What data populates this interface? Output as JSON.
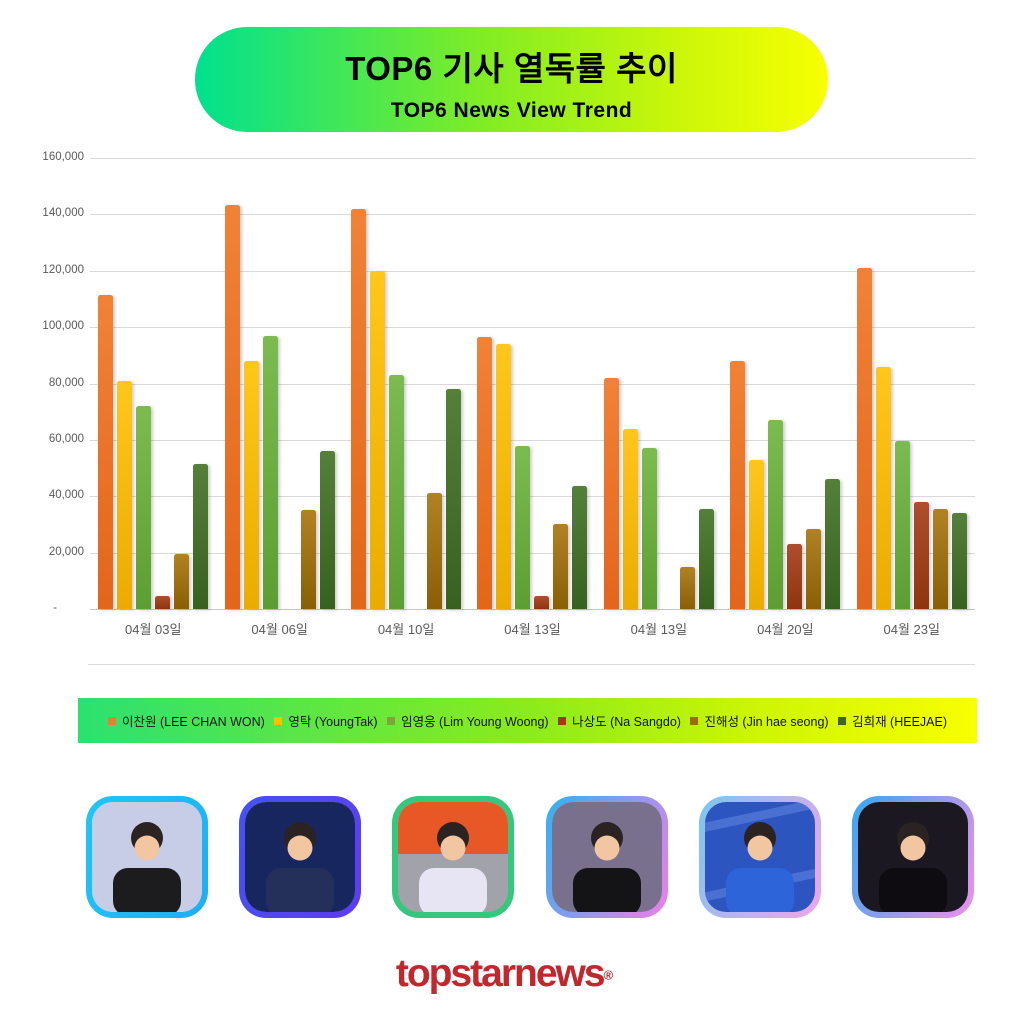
{
  "banner": {
    "title": "TOP6 기사 열독률 추이",
    "subtitle": "TOP6 News View Trend",
    "gradient": [
      "#00E18F",
      "#F8FF00"
    ]
  },
  "chart_data": {
    "type": "bar",
    "title": "TOP6 기사 열독률 추이",
    "subtitle": "TOP6 News View Trend",
    "categories": [
      "04월 03일",
      "04월 06일",
      "04월 10일",
      "04월 13일",
      "04월 13일",
      "04월 20일",
      "04월 23일"
    ],
    "series": [
      {
        "name": "이찬원 (LEE CHAN WON)",
        "marker": "#ED7D31",
        "color_top": "#F08236",
        "color_bottom": "#E2661B",
        "values": [
          111500,
          143500,
          142000,
          96500,
          82000,
          88000,
          121000
        ]
      },
      {
        "name": "영탁 (YoungTak)",
        "marker": "#FFC000",
        "color_top": "#FFC61C",
        "color_bottom": "#EAAC00",
        "values": [
          81000,
          88000,
          120000,
          94000,
          64000,
          53000,
          86000
        ]
      },
      {
        "name": "임영웅 (Lim Young Woong)",
        "marker": "#7CA63C",
        "color_top": "#7CBB50",
        "color_bottom": "#5C9E33",
        "values": [
          72000,
          97000,
          83000,
          58000,
          57000,
          67000,
          59500
        ]
      },
      {
        "name": "나상도 (Na Sangdo)",
        "marker": "#9E3C16",
        "color_top": "#AE4E2D",
        "color_bottom": "#8E350F",
        "values": [
          4500,
          0,
          0,
          4500,
          0,
          23000,
          38000
        ]
      },
      {
        "name": "진해성 (Jin hae seong)",
        "marker": "#9A6D0B",
        "color_top": "#B08224",
        "color_bottom": "#8A5F05",
        "values": [
          19500,
          35000,
          41000,
          30000,
          15000,
          28500,
          35500
        ]
      },
      {
        "name": "김희재 (HEEJAE)",
        "marker": "#3F6426",
        "color_top": "#55803A",
        "color_bottom": "#37611E",
        "values": [
          51500,
          56000,
          78000,
          43500,
          35500,
          46000,
          34000
        ]
      }
    ],
    "ylim": [
      0,
      160000
    ],
    "ytick_step": 20000,
    "ytick_labels": [
      "160,000",
      "140,000",
      "120,000",
      "100,000",
      "80,000",
      "60,000",
      "40,000",
      "20,000",
      "-"
    ],
    "grid": true,
    "legend_position": "bottom",
    "legend_gradient": [
      "#2BE171",
      "#F8FF00"
    ]
  },
  "avatar_style": {
    "skin": "#F1C6A0",
    "hair": "#2A2321"
  },
  "avatars": [
    {
      "border": [
        "#1FC6F8",
        "#1FAEF2"
      ],
      "bg": "#C7CDE7",
      "outfit": "#1C1C1E"
    },
    {
      "border": [
        "#4353F2",
        "#5F3BF2"
      ],
      "bg": "#17265F",
      "outfit": "#25305A"
    },
    {
      "border": [
        "#35C77E",
        "#35C77E"
      ],
      "bg": "#E85827",
      "bg2": "#A2A2AA",
      "outfit": "#E7E5F3"
    },
    {
      "border": [
        "#2FB3F2",
        "#F07EE9"
      ],
      "bg": "#79708E",
      "outfit": "#141416"
    },
    {
      "border": [
        "#79C7F3",
        "#F2A4E4"
      ],
      "bg": "#2C55BF",
      "stripes": "#4A70D4",
      "outfit": "#2E64D9"
    },
    {
      "border": [
        "#36A7F0",
        "#EE90EA"
      ],
      "bg": "#1B1822",
      "outfit": "#0E0C10"
    }
  ],
  "footer": {
    "logo_text": "topstarnews",
    "logo_mark": "®"
  }
}
